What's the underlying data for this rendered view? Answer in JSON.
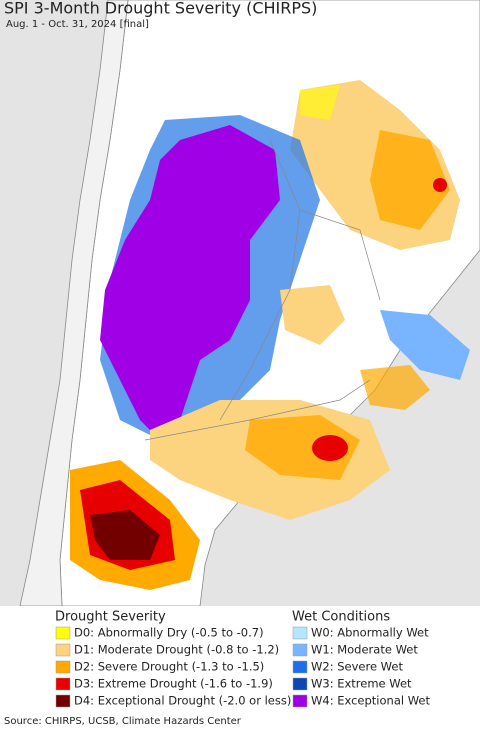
{
  "title": "SPI 3-Month Drought Severity (CHIRPS)",
  "subtitle": "Aug. 1 - Oct. 31, 2024 [final]",
  "legend": {
    "drought": {
      "title": "Drought Severity",
      "items": [
        {
          "label": "D0: Abnormally Dry (-0.5 to -0.7)",
          "color": "#ffff00"
        },
        {
          "label": "D1: Moderate Drought (-0.8 to -1.2)",
          "color": "#fcd37f"
        },
        {
          "label": "D2: Severe Drought (-1.3 to -1.5)",
          "color": "#ffaa00"
        },
        {
          "label": "D3: Extreme Drought (-1.6 to -1.9)",
          "color": "#e60000"
        },
        {
          "label": "D4: Exceptional Drought (-2.0 or less)",
          "color": "#730000"
        }
      ]
    },
    "wet": {
      "title": "Wet Conditions",
      "items": [
        {
          "label": "W0: Abnormally Wet",
          "color": "#b4e6ff"
        },
        {
          "label": "W1: Moderate Wet",
          "color": "#78b4ff"
        },
        {
          "label": "W2: Severe Wet",
          "color": "#1e6eeb"
        },
        {
          "label": "W3: Extreme Wet",
          "color": "#0a46b4"
        },
        {
          "label": "W4: Exceptional Wet",
          "color": "#a000e6"
        }
      ]
    }
  },
  "source": "Source: CHIRPS, UCSB, Climate Hazards Center"
}
